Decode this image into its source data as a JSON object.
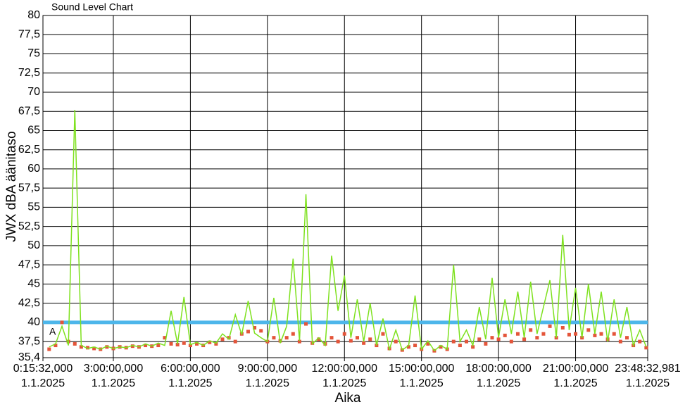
{
  "chart_data": {
    "type": "line",
    "title": "Sound Level Chart",
    "x_label": "Aika",
    "y_label": "JWX dBA äänitaso",
    "annotations": [
      "A"
    ],
    "xlim": [
      0.2589,
      23.8092
    ],
    "xticks": [
      {
        "value": 0.2589,
        "label": [
          "0:15:32,000",
          "1.1.2025"
        ]
      },
      {
        "value": 3,
        "label": [
          "3:00:00,000",
          "1.1.2025"
        ]
      },
      {
        "value": 6,
        "label": [
          "6:00:00,000",
          "1.1.2025"
        ]
      },
      {
        "value": 9,
        "label": [
          "9:00:00,000",
          "1.1.2025"
        ]
      },
      {
        "value": 12,
        "label": [
          "12:00:00,000",
          "1.1.2025"
        ]
      },
      {
        "value": 15,
        "label": [
          "15:00:00,000",
          "1.1.2025"
        ]
      },
      {
        "value": 18,
        "label": [
          "18:00:00,000",
          "1.1.2025"
        ]
      },
      {
        "value": 21,
        "label": [
          "21:00:00,000",
          "1.1.2025"
        ]
      },
      {
        "value": 23.8092,
        "label": [
          "23:48:32,981",
          "1.1.2025"
        ]
      }
    ],
    "ylim": [
      35.4,
      80
    ],
    "yticks": [
      {
        "value": 35.4,
        "label": "35,4"
      },
      {
        "value": 37.5,
        "label": "37,5"
      },
      40,
      {
        "value": 42.5,
        "label": "42,5"
      },
      45,
      {
        "value": 47.5,
        "label": "47,5"
      },
      50,
      {
        "value": 52.5,
        "label": "52,5"
      },
      55,
      {
        "value": 57.5,
        "label": "57,5"
      },
      60,
      {
        "value": 62.5,
        "label": "62,5"
      },
      65,
      {
        "value": 67.5,
        "label": "67,5"
      },
      70,
      {
        "value": 72.5,
        "label": "72,5"
      },
      75,
      {
        "value": 77.5,
        "label": "77,5"
      },
      80
    ],
    "grid": true,
    "hlines": [
      {
        "value": 40,
        "color": "#4db6ea"
      }
    ],
    "x": [
      0.5,
      0.75,
      1,
      1.25,
      1.5,
      1.75,
      2,
      2.25,
      2.5,
      2.75,
      3,
      3.25,
      3.5,
      3.75,
      4,
      4.25,
      4.5,
      4.75,
      5,
      5.25,
      5.5,
      5.75,
      6,
      6.25,
      6.5,
      6.75,
      7,
      7.25,
      7.5,
      7.75,
      8,
      8.25,
      8.5,
      8.75,
      9,
      9.25,
      9.5,
      9.75,
      10,
      10.25,
      10.5,
      10.75,
      11,
      11.25,
      11.5,
      11.75,
      12,
      12.25,
      12.5,
      12.75,
      13,
      13.25,
      13.5,
      13.75,
      14,
      14.25,
      14.5,
      14.75,
      15,
      15.25,
      15.5,
      15.75,
      16,
      16.25,
      16.5,
      16.75,
      17,
      17.25,
      17.5,
      17.75,
      18,
      18.25,
      18.5,
      18.75,
      19,
      19.25,
      19.5,
      19.75,
      20,
      20.25,
      20.5,
      20.75,
      21,
      21.25,
      21.5,
      21.75,
      22,
      22.25,
      22.5,
      22.75,
      23,
      23.25,
      23.5,
      23.75
    ],
    "series": [
      {
        "color": "#e4553a",
        "style": "markers",
        "values": [
          36.5,
          37,
          40,
          37.5,
          37.2,
          36.8,
          36.7,
          36.6,
          36.5,
          36.8,
          36.6,
          36.8,
          36.7,
          36.9,
          36.8,
          37,
          36.9,
          37,
          38,
          37.2,
          37.1,
          37.3,
          37,
          37.2,
          37,
          37.4,
          37.2,
          37.8,
          38,
          37.5,
          38.5,
          38.8,
          39.3,
          38.9,
          37.5,
          38,
          37.6,
          38,
          38.5,
          37.5,
          39.8,
          37.3,
          37.8,
          37.2,
          38,
          37.5,
          38.5,
          37.6,
          38,
          37.3,
          37.8,
          37,
          38.5,
          36.6,
          37.5,
          36.4,
          36.8,
          37,
          36.5,
          37.2,
          36.3,
          36.8,
          36.5,
          37.5,
          37,
          37.5,
          36.8,
          37.8,
          37.2,
          38,
          37.8,
          38.3,
          37.5,
          38.5,
          37.8,
          39,
          38,
          38.5,
          39.5,
          38,
          39.3,
          38.4,
          38.5,
          38,
          39,
          38.3,
          38.5,
          37.8,
          38.5,
          37.5,
          38,
          37,
          37.5,
          36.7
        ]
      },
      {
        "color": "#7ee11e",
        "style": "line",
        "values": [
          36.8,
          37.2,
          39.5,
          37,
          67.7,
          37,
          36.6,
          36.8,
          36.5,
          36.9,
          36.6,
          36.8,
          36.7,
          37,
          36.8,
          37.2,
          36.9,
          37.3,
          37,
          41.5,
          37.2,
          43.3,
          37.1,
          37.4,
          37,
          37.6,
          37.3,
          38.5,
          37.8,
          41,
          38.4,
          42.8,
          38.6,
          38,
          37.5,
          43.2,
          37.3,
          39.5,
          48.3,
          37.6,
          56.7,
          37.2,
          38,
          37,
          48.7,
          41.5,
          46.1,
          38,
          43,
          37.5,
          42.5,
          37,
          40.5,
          36.5,
          39,
          36.4,
          37,
          43.5,
          36.5,
          37.6,
          36.3,
          37,
          36.5,
          47.5,
          37.5,
          39,
          37,
          42,
          37.8,
          45.8,
          38,
          43,
          38.5,
          44,
          38,
          45.3,
          38.5,
          42,
          45.5,
          38,
          51.4,
          39,
          44.5,
          38,
          45,
          38.5,
          44,
          37.5,
          43,
          38,
          42,
          37,
          39,
          36.8
        ]
      }
    ]
  }
}
